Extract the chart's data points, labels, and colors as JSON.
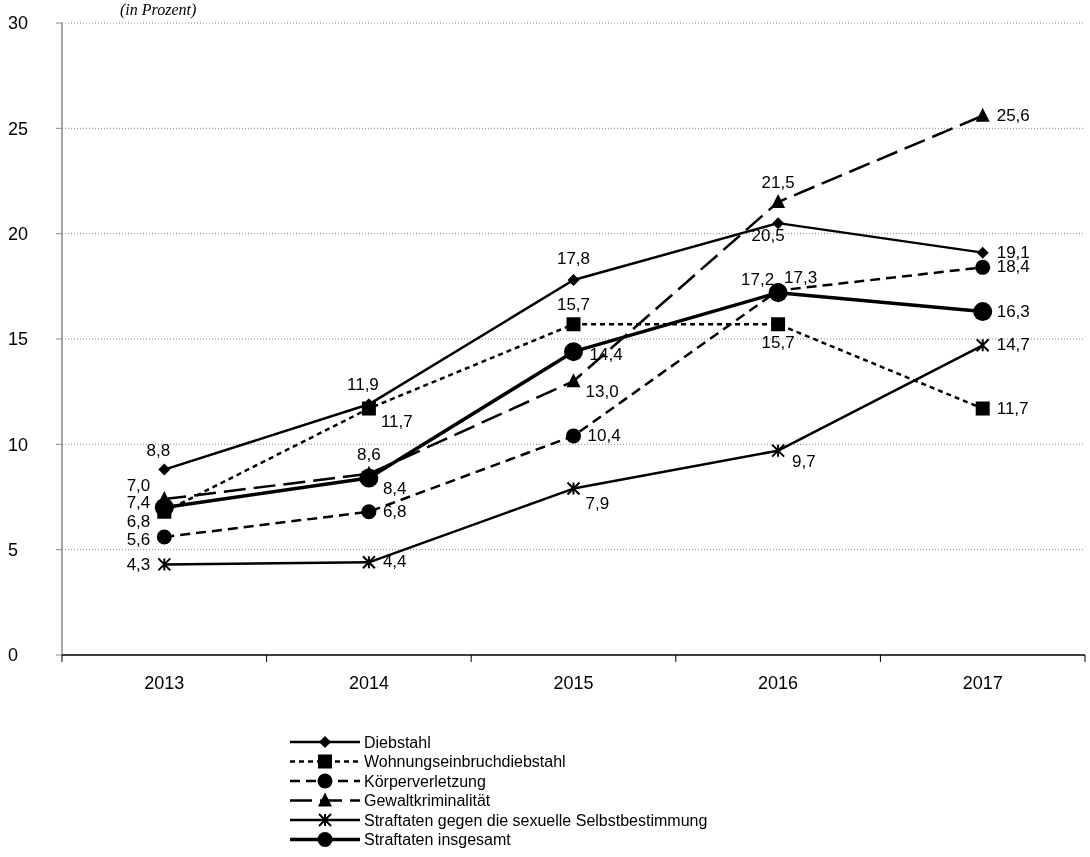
{
  "chart_data": {
    "type": "line",
    "subtitle": "(in Prozent)",
    "categories": [
      "2013",
      "2014",
      "2015",
      "2016",
      "2017"
    ],
    "series": [
      {
        "name": "Diebstahl",
        "color": "#000000",
        "marker": "diamond",
        "line_style": "solid",
        "values": [
          8.8,
          11.9,
          17.8,
          20.5,
          19.1
        ],
        "value_labels": [
          "8,8",
          "11,9",
          "17,8",
          "20,5",
          "19,1"
        ]
      },
      {
        "name": "Wohnungseinbruchdiebstahl",
        "color": "#000000",
        "marker": "square",
        "line_style": "dashed",
        "values": [
          6.8,
          11.7,
          15.7,
          15.7,
          11.7
        ],
        "value_labels": [
          "6,8",
          "11,7",
          "15,7",
          "15,7",
          "11,7"
        ]
      },
      {
        "name": "Körperverletzung",
        "color": "#000000",
        "marker": "circle",
        "line_style": "dashed",
        "values": [
          5.6,
          6.8,
          10.4,
          17.3,
          18.4
        ],
        "value_labels": [
          "5,6",
          "6,8",
          "10,4",
          "17,3",
          "18,4"
        ]
      },
      {
        "name": "Gewaltkriminalität",
        "color": "#000000",
        "marker": "triangle",
        "line_style": "dashed",
        "values": [
          7.4,
          8.6,
          13.0,
          21.5,
          25.6
        ],
        "value_labels": [
          "7,4",
          "8,6",
          "13,0",
          "21,5",
          "25,6"
        ]
      },
      {
        "name": "Straftaten gegen die sexuelle Selbstbestimmung",
        "color": "#000000",
        "marker": "cross",
        "line_style": "solid",
        "values": [
          4.3,
          4.4,
          7.9,
          9.7,
          14.7
        ],
        "value_labels": [
          "4,3",
          "4,4",
          "7,9",
          "9,7",
          "14,7"
        ]
      },
      {
        "name": "Straftaten insgesamt",
        "color": "#000000",
        "marker": "circle",
        "line_style": "solid",
        "values": [
          7.0,
          8.4,
          14.4,
          17.2,
          16.3
        ],
        "value_labels": [
          "7,0",
          "8,4",
          "14,4",
          "17,2",
          "16,3"
        ]
      }
    ],
    "ylim": [
      0,
      30
    ],
    "yticks": [
      0,
      5,
      10,
      15,
      20,
      25,
      30
    ],
    "grid": "y",
    "legend": "bottom",
    "data_labels": true
  }
}
